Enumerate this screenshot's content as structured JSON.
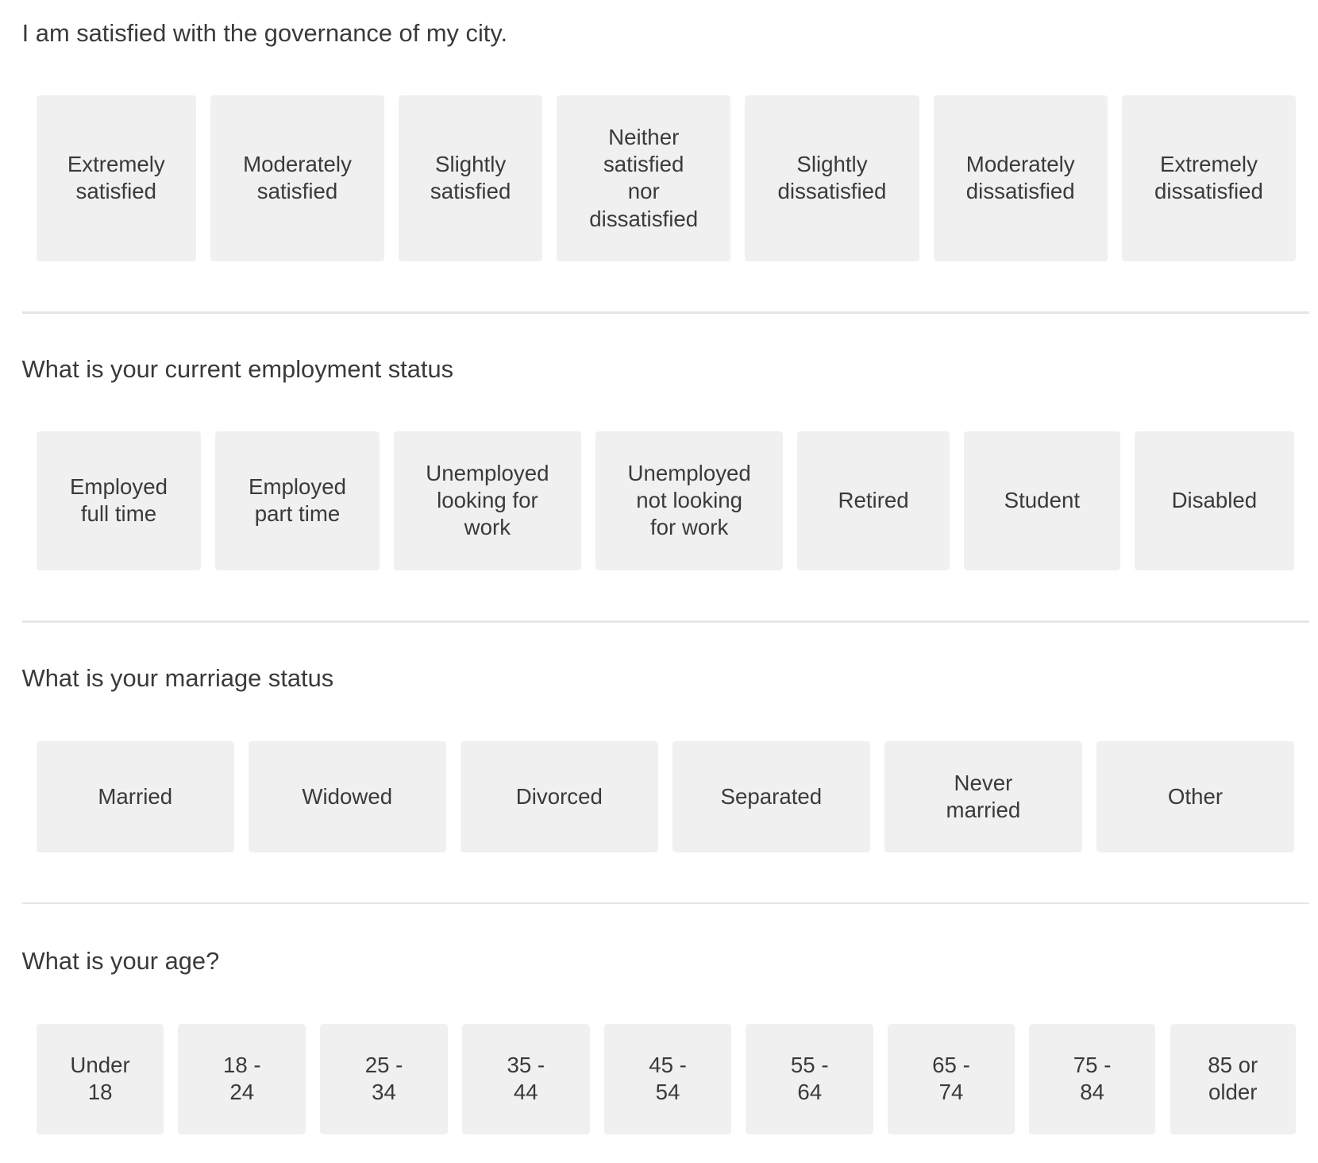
{
  "questions": [
    {
      "title": "I am satisfied with the governance of my city.",
      "options": [
        "Extremely\nsatisfied",
        "Moderately\nsatisfied",
        "Slightly\nsatisfied",
        "Neither\nsatisfied\nnor\ndissatisfied",
        "Slightly\ndissatisfied",
        "Moderately\ndissatisfied",
        "Extremely\ndissatisfied"
      ]
    },
    {
      "title": "What is your current employment status",
      "options": [
        "Employed\nfull time",
        "Employed\npart time",
        "Unemployed\nlooking for\nwork",
        "Unemployed\nnot looking\nfor work",
        "Retired",
        "Student",
        "Disabled"
      ]
    },
    {
      "title": "What is your marriage status",
      "options": [
        "Married",
        "Widowed",
        "Divorced",
        "Separated",
        "Never\nmarried",
        "Other"
      ]
    },
    {
      "title": "What is your age?",
      "options": [
        "Under\n18",
        "18 -\n24",
        "25 -\n34",
        "35 -\n44",
        "45 -\n54",
        "55 -\n64",
        "65 -\n74",
        "75 -\n84",
        "85 or\nolder"
      ]
    }
  ]
}
